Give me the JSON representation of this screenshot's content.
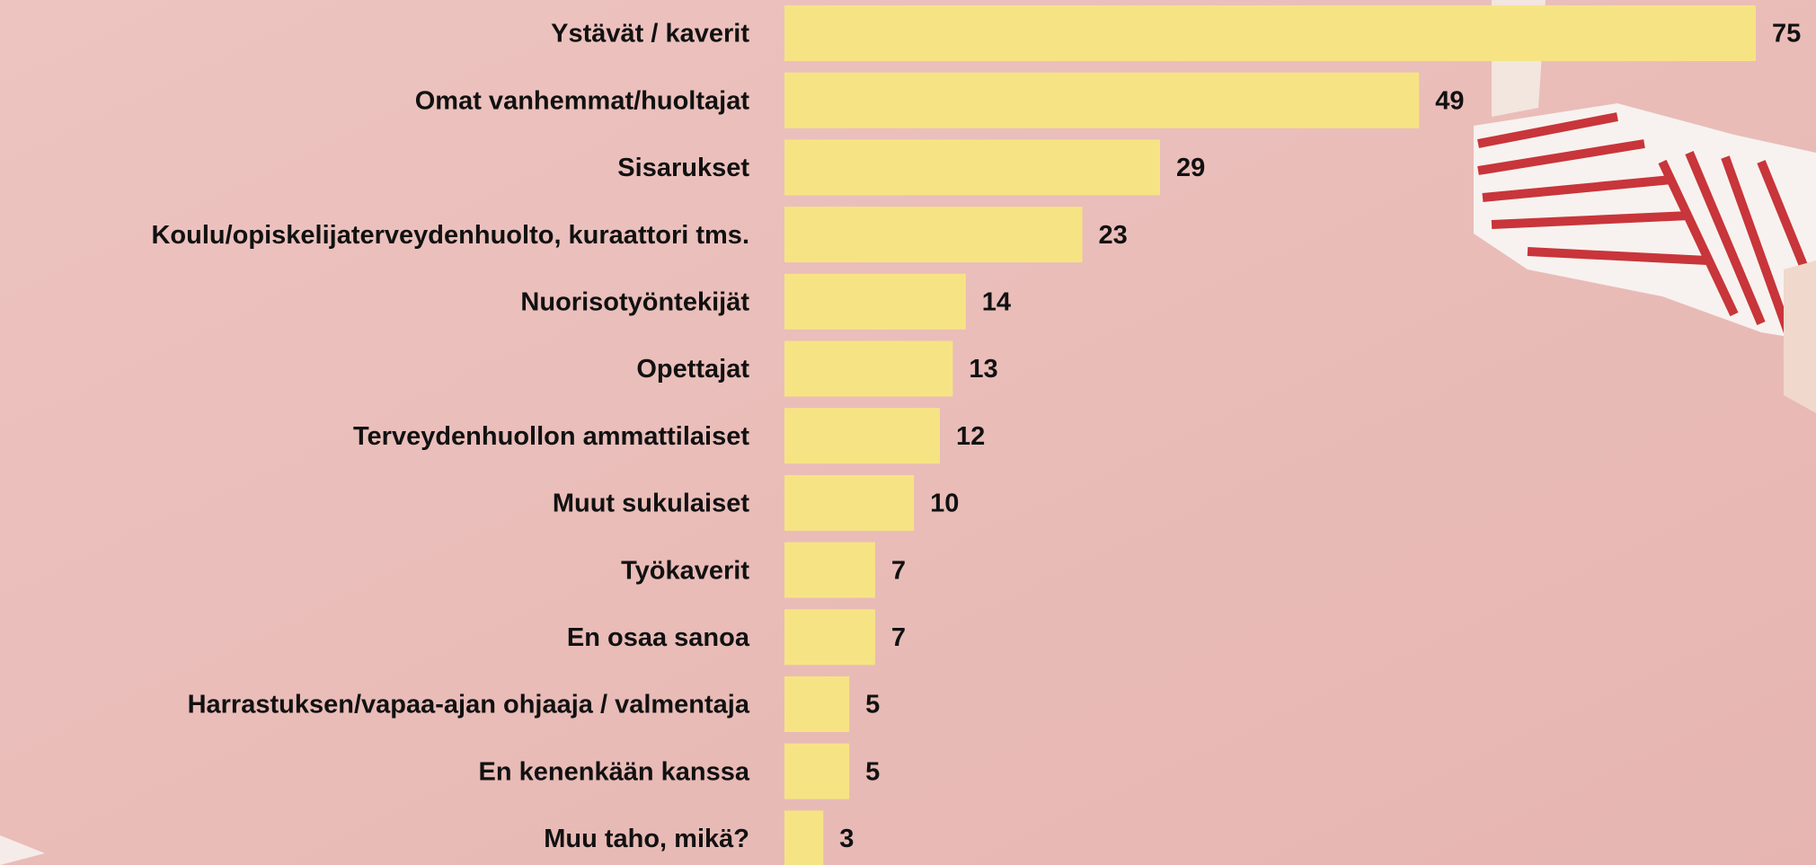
{
  "chart_data": {
    "type": "bar",
    "orientation": "horizontal",
    "categories": [
      "Ystävät / kaverit",
      "Omat vanhemmat/huoltajat",
      "Sisarukset",
      "Koulu/opiskelijaterveydenhuolto, kuraattori tms.",
      "Nuorisotyöntekijät",
      "Opettajat",
      "Terveydenhuollon ammattilaiset",
      "Muut sukulaiset",
      "Työkaverit",
      "En osaa sanoa",
      "Harrastuksen/vapaa-ajan ohjaaja / valmentaja",
      "En kenenkään kanssa",
      "Muu taho, mikä?"
    ],
    "values": [
      75,
      49,
      29,
      23,
      14,
      13,
      12,
      10,
      7,
      7,
      5,
      5,
      3
    ],
    "color": "#f6e484"
  }
}
